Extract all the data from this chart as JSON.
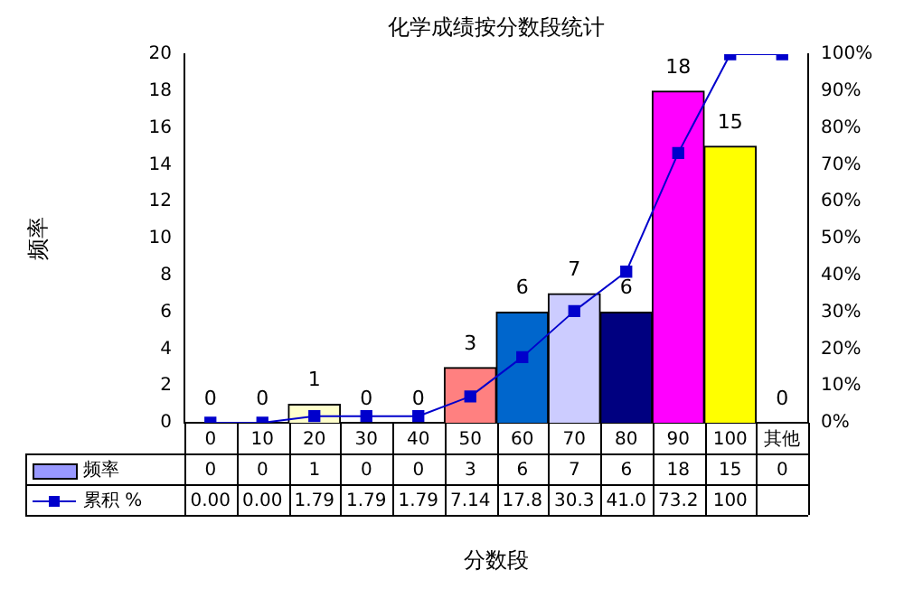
{
  "chart_data": {
    "type": "bar",
    "title": "化学成绩按分数段统计",
    "xlabel": "分数段",
    "ylabel": "频率",
    "categories": [
      "0",
      "10",
      "20",
      "30",
      "40",
      "50",
      "60",
      "70",
      "80",
      "90",
      "100",
      "其他"
    ],
    "series": [
      {
        "name": "频率",
        "value_labels": [
          "0",
          "0",
          "1",
          "0",
          "0",
          "3",
          "6",
          "7",
          "6",
          "18",
          "15",
          "0"
        ],
        "color": "#9999ff",
        "colors": [
          "#9999ff",
          "#9999ff",
          "#ffffcc",
          "#9999ff",
          "#9999ff",
          "#ff8080",
          "#0066cc",
          "#ccccff",
          "#000080",
          "#ff00ff",
          "#ffff00",
          "#9999ff"
        ],
        "values": [
          0,
          0,
          1,
          0,
          0,
          3,
          6,
          7,
          6,
          18,
          15,
          0
        ]
      },
      {
        "name": "累积 %",
        "type": "line",
        "axis": "y2",
        "color": "#0000cc",
        "marker": "square",
        "values": [
          0,
          0,
          1.79,
          1.79,
          1.79,
          7.14,
          17.8,
          30.3,
          41.0,
          73.2,
          100,
          100
        ],
        "value_labels": [
          "0.00",
          "0.00",
          "1.79",
          "1.79",
          "1.79",
          "7.14",
          "17.8",
          "30.3",
          "41.0",
          "73.2",
          "100",
          null
        ]
      }
    ],
    "ylim": [
      0,
      20
    ],
    "yticks": [
      0,
      2,
      4,
      6,
      8,
      10,
      12,
      14,
      16,
      18,
      20
    ],
    "y2lim": [
      0,
      100
    ],
    "y2ticks": [
      {
        "value": 0,
        "label": "0%"
      },
      {
        "value": 10,
        "label": "10%"
      },
      {
        "value": 20,
        "label": "20%"
      },
      {
        "value": 30,
        "label": "30%"
      },
      {
        "value": 40,
        "label": "40%"
      },
      {
        "value": 50,
        "label": "50%"
      },
      {
        "value": 60,
        "label": "60%"
      },
      {
        "value": 70,
        "label": "70%"
      },
      {
        "value": 80,
        "label": "80%"
      },
      {
        "value": 90,
        "label": "90%"
      },
      {
        "value": 100,
        "label": "100%"
      }
    ],
    "data_labels": true,
    "legend": "bottom left"
  }
}
